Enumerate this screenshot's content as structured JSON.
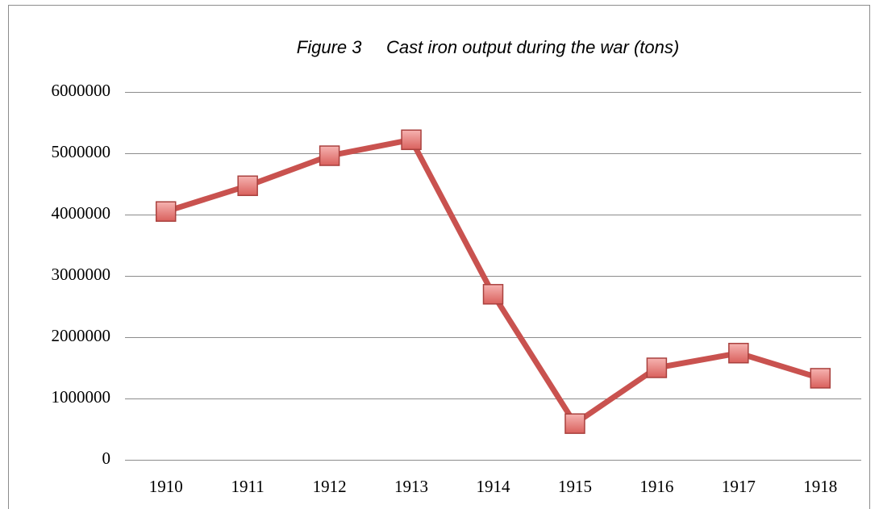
{
  "chart_data": {
    "type": "line",
    "title": "Figure 3     Cast iron output during the war (tons)",
    "categories": [
      "1910",
      "1911",
      "1912",
      "1913",
      "1914",
      "1915",
      "1916",
      "1917",
      "1918"
    ],
    "series": [
      {
        "color": "#c9524f",
        "values": [
          4050000,
          4470000,
          4960000,
          5220000,
          2700000,
          590000,
          1500000,
          1740000,
          1330000
        ]
      }
    ],
    "ylim": [
      0,
      6000000
    ],
    "yticks": [
      0,
      1000000,
      2000000,
      3000000,
      4000000,
      5000000,
      6000000
    ],
    "grid": true
  }
}
